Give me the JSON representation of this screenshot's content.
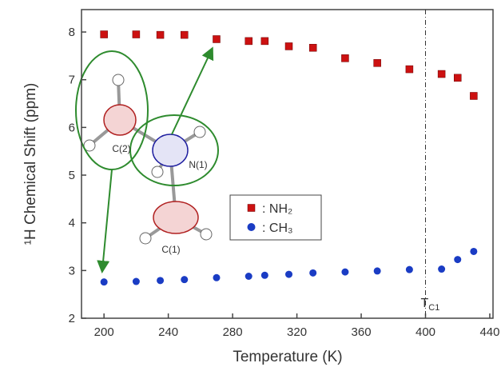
{
  "chart_data": {
    "type": "scatter",
    "xlabel": "Temperature (K)",
    "ylabel": "¹H Chemical Shift (ppm)",
    "xlim": [
      186,
      442
    ],
    "xticks": [
      200,
      240,
      280,
      320,
      360,
      400,
      440
    ],
    "ylim": [
      2,
      8.47
    ],
    "yticks": [
      2,
      3,
      4,
      5,
      6,
      7,
      8
    ],
    "series": [
      {
        "name": ": NH₂",
        "color": "#cc1111",
        "marker": "square",
        "x": [
          200,
          220,
          235,
          250,
          270,
          290,
          300,
          315,
          330,
          350,
          370,
          390,
          410,
          420,
          430
        ],
        "values": [
          7.95,
          7.95,
          7.94,
          7.94,
          7.85,
          7.81,
          7.81,
          7.7,
          7.67,
          7.45,
          7.35,
          7.22,
          7.12,
          7.04,
          6.66
        ]
      },
      {
        "name": ": CH₃",
        "color": "#1a3cc4",
        "marker": "circle",
        "x": [
          200,
          220,
          235,
          250,
          270,
          290,
          300,
          315,
          330,
          350,
          370,
          390,
          410,
          420,
          430
        ],
        "values": [
          2.76,
          2.77,
          2.79,
          2.81,
          2.85,
          2.88,
          2.9,
          2.92,
          2.95,
          2.97,
          2.99,
          3.02,
          3.03,
          3.23,
          3.4
        ]
      }
    ],
    "annotation": {
      "text": "T",
      "subscript": "C1",
      "x": 400
    },
    "inset_labels": [
      "C(2)",
      "N(1)",
      "C(1)"
    ]
  }
}
